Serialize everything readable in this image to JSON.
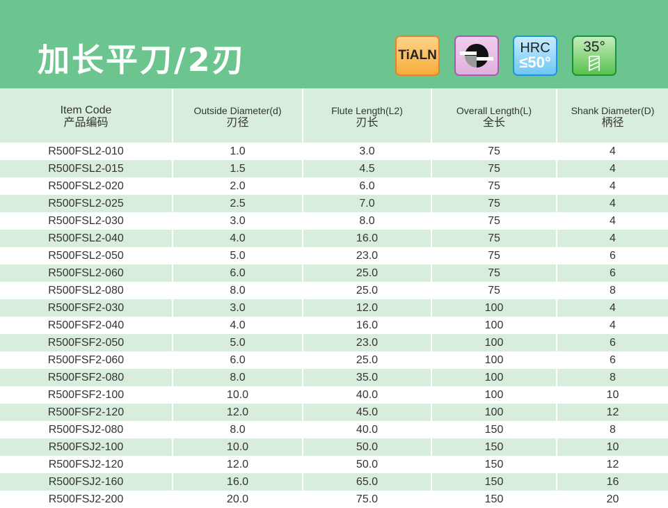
{
  "header": {
    "title": "加长平刀/2刃",
    "badges": {
      "coating": "TiALN",
      "edge_icon": "cutting-edge-icon",
      "hrc_top": "HRC",
      "hrc_bottom": "≤50°",
      "helix_top": "35°",
      "helix_icon": "helix-flute-icon"
    }
  },
  "colors": {
    "banner": "#6cc48e",
    "row_alt": "#d9eddc"
  },
  "table": {
    "columns": [
      {
        "en": "Item Code",
        "zh": "产品编码"
      },
      {
        "en": "Outside Diameter(d)",
        "zh": "刃径"
      },
      {
        "en": "Flute Length(L2)",
        "zh": "刃长"
      },
      {
        "en": "Overall Length(L)",
        "zh": "全长"
      },
      {
        "en": "Shank Diameter(D)",
        "zh": "柄径"
      }
    ],
    "rows": [
      [
        "R500FSL2-010",
        "1.0",
        "3.0",
        "75",
        "4"
      ],
      [
        "R500FSL2-015",
        "1.5",
        "4.5",
        "75",
        "4"
      ],
      [
        "R500FSL2-020",
        "2.0",
        "6.0",
        "75",
        "4"
      ],
      [
        "R500FSL2-025",
        "2.5",
        "7.0",
        "75",
        "4"
      ],
      [
        "R500FSL2-030",
        "3.0",
        "8.0",
        "75",
        "4"
      ],
      [
        "R500FSL2-040",
        "4.0",
        "16.0",
        "75",
        "4"
      ],
      [
        "R500FSL2-050",
        "5.0",
        "23.0",
        "75",
        "6"
      ],
      [
        "R500FSL2-060",
        "6.0",
        "25.0",
        "75",
        "6"
      ],
      [
        "R500FSL2-080",
        "8.0",
        "25.0",
        "75",
        "8"
      ],
      [
        "R500FSF2-030",
        "3.0",
        "12.0",
        "100",
        "4"
      ],
      [
        "R500FSF2-040",
        "4.0",
        "16.0",
        "100",
        "4"
      ],
      [
        "R500FSF2-050",
        "5.0",
        "23.0",
        "100",
        "6"
      ],
      [
        "R500FSF2-060",
        "6.0",
        "25.0",
        "100",
        "6"
      ],
      [
        "R500FSF2-080",
        "8.0",
        "35.0",
        "100",
        "8"
      ],
      [
        "R500FSF2-100",
        "10.0",
        "40.0",
        "100",
        "10"
      ],
      [
        "R500FSF2-120",
        "12.0",
        "45.0",
        "100",
        "12"
      ],
      [
        "R500FSJ2-080",
        "8.0",
        "40.0",
        "150",
        "8"
      ],
      [
        "R500FSJ2-100",
        "10.0",
        "50.0",
        "150",
        "10"
      ],
      [
        "R500FSJ2-120",
        "12.0",
        "50.0",
        "150",
        "12"
      ],
      [
        "R500FSJ2-160",
        "16.0",
        "65.0",
        "150",
        "16"
      ],
      [
        "R500FSJ2-200",
        "20.0",
        "75.0",
        "150",
        "20"
      ]
    ]
  }
}
